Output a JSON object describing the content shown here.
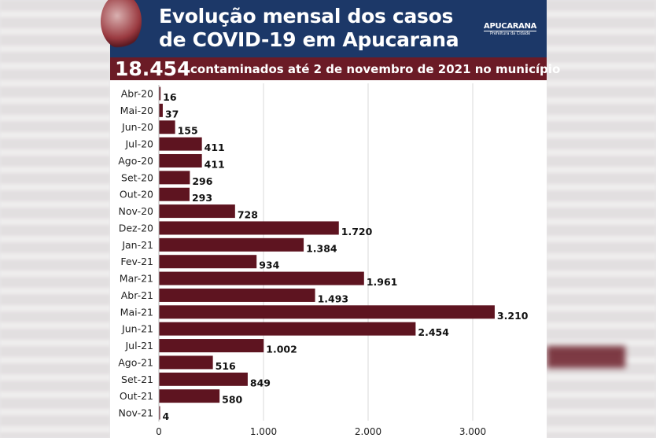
{
  "header": {
    "title_line1": "Evolução mensal dos casos",
    "title_line2": "de COVID-19 em Apucarana",
    "logo_text": "APUCARANA",
    "logo_subtext": "Prefeitura da Cidade"
  },
  "banner": {
    "total": "18.454",
    "text": "contaminados até 2 de novembro de 2021 no município"
  },
  "colors": {
    "header": "#1c3868",
    "banner": "#6b1b26",
    "bar": "#5e1420"
  },
  "chart_data": {
    "type": "bar",
    "orientation": "horizontal",
    "categories": [
      "Abr-20",
      "Mai-20",
      "Jun-20",
      "Jul-20",
      "Ago-20",
      "Set-20",
      "Out-20",
      "Nov-20",
      "Dez-20",
      "Jan-21",
      "Fev-21",
      "Mar-21",
      "Abr-21",
      "Mai-21",
      "Jun-21",
      "Jul-21",
      "Ago-21",
      "Set-21",
      "Out-21",
      "Nov-21"
    ],
    "values": [
      16,
      37,
      155,
      411,
      411,
      296,
      293,
      728,
      1720,
      1384,
      934,
      1961,
      1493,
      3210,
      2454,
      1002,
      516,
      849,
      580,
      4
    ],
    "data_labels": [
      "16",
      "37",
      "155",
      "411",
      "411",
      "296",
      "293",
      "728",
      "1.720",
      "1.384",
      "934",
      "1.961",
      "1.493",
      "3.210",
      "2.454",
      "1.002",
      "516",
      "849",
      "580",
      "4"
    ],
    "xticks": [
      0,
      1000,
      2000,
      3000
    ],
    "xtick_labels": [
      "0",
      "1.000",
      "2.000",
      "3.000"
    ],
    "xlim": [
      0,
      3300
    ],
    "grid": true
  }
}
